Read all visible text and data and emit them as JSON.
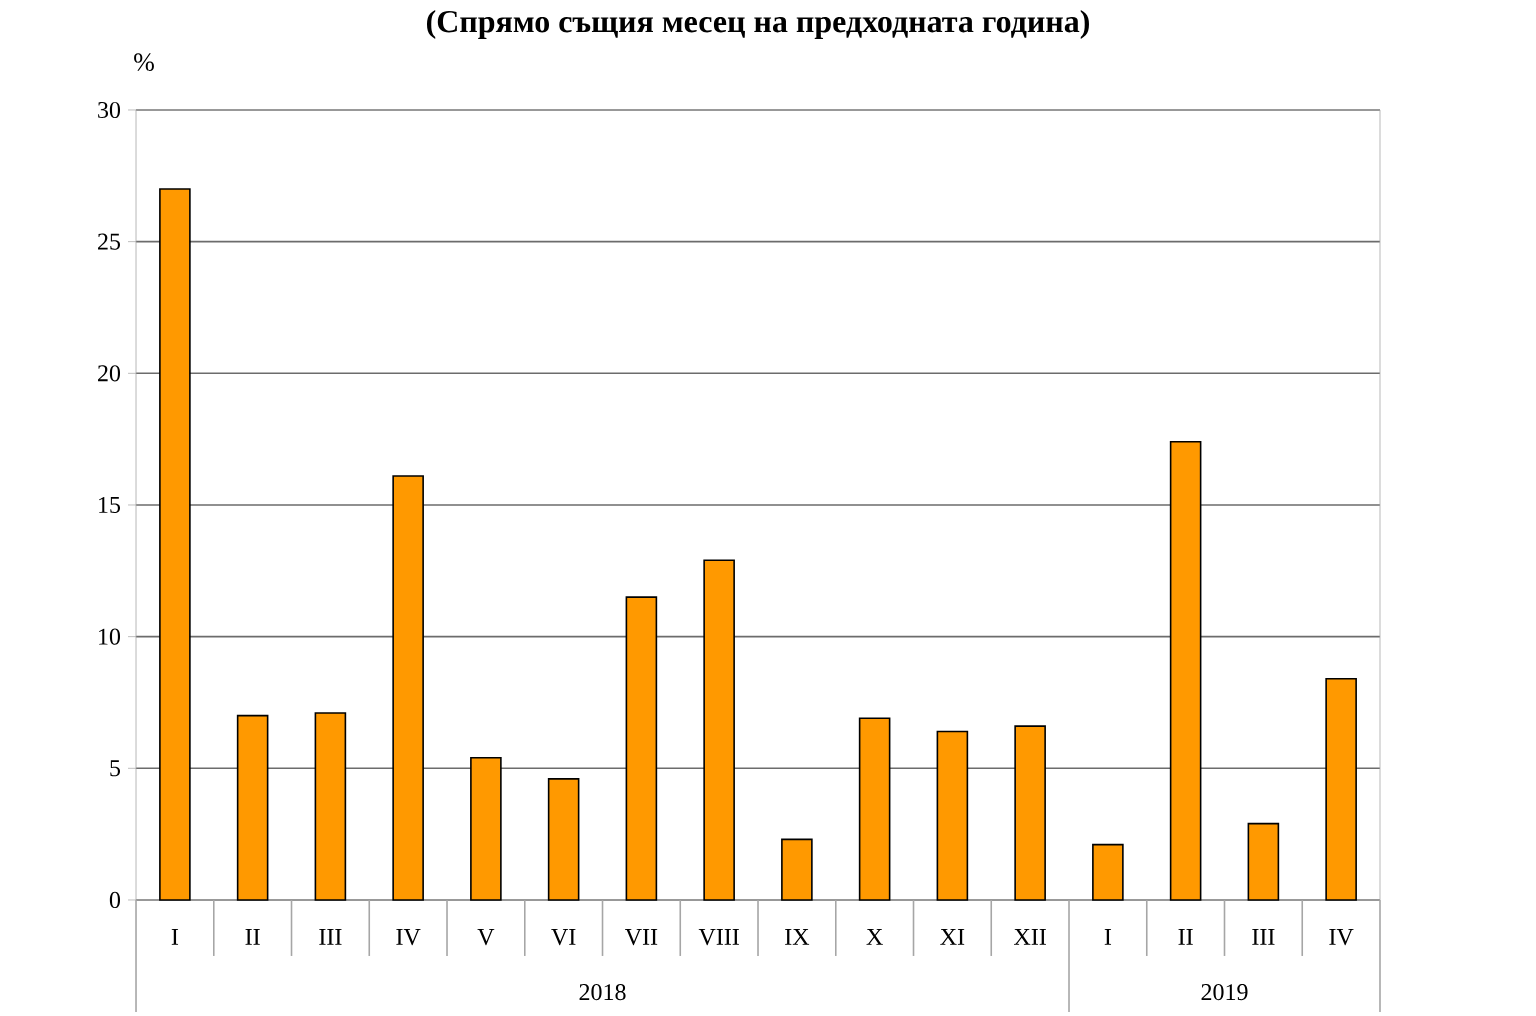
{
  "chart_data": {
    "type": "bar",
    "title": "(Спрямо същия месец на предходната година)",
    "ylabel": "%",
    "categories": [
      "I",
      "II",
      "III",
      "IV",
      "V",
      "VI",
      "VII",
      "VIII",
      "IX",
      "X",
      "XI",
      "XII",
      "I",
      "II",
      "III",
      "IV"
    ],
    "values": [
      27.0,
      7.0,
      7.1,
      16.1,
      5.4,
      4.6,
      11.5,
      12.9,
      2.3,
      6.9,
      6.4,
      6.6,
      2.1,
      17.4,
      2.9,
      8.4
    ],
    "color": "#ff9900",
    "ylim": [
      0,
      30
    ],
    "yticks": [
      0,
      5,
      10,
      15,
      20,
      25,
      30
    ],
    "grid": "y",
    "annotations": [
      "2018",
      "2019"
    ]
  }
}
